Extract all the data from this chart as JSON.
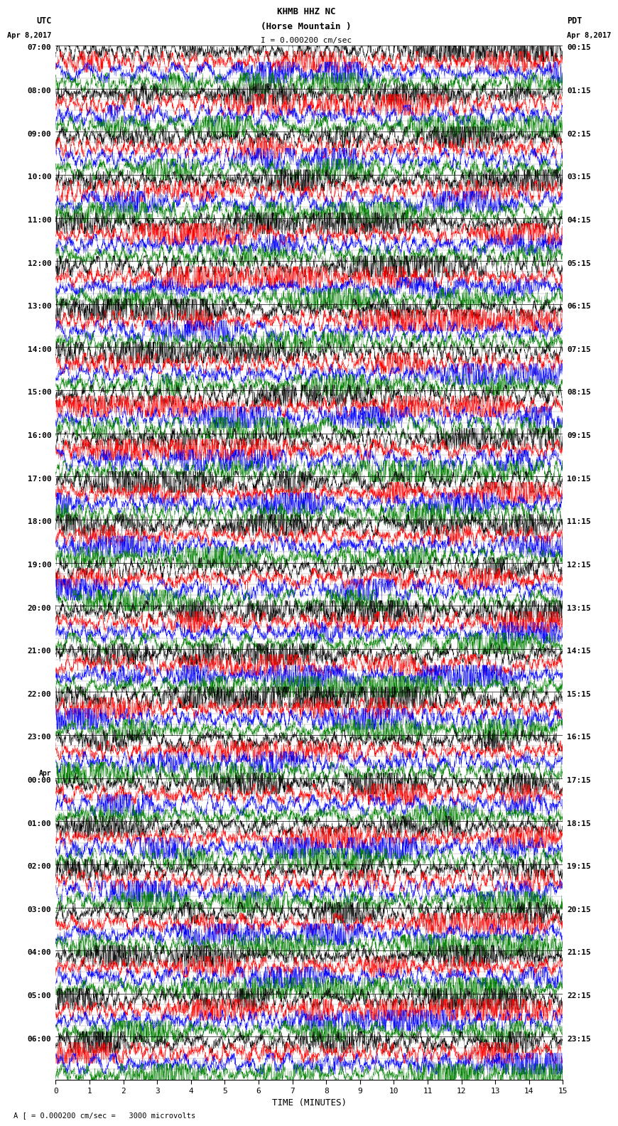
{
  "title_line1": "KHMB HHZ NC",
  "title_line2": "(Horse Mountain )",
  "scale_text": "I = 0.000200 cm/sec",
  "left_header": "UTC",
  "left_date": "Apr 8,2017",
  "right_header": "PDT",
  "right_date": "Apr 8,2017",
  "xlabel": "TIME (MINUTES)",
  "footer": "A [ = 0.000200 cm/sec =   3000 microvolts",
  "x_ticks": [
    0,
    1,
    2,
    3,
    4,
    5,
    6,
    7,
    8,
    9,
    10,
    11,
    12,
    13,
    14,
    15
  ],
  "left_times": [
    "07:00",
    "08:00",
    "09:00",
    "10:00",
    "11:00",
    "12:00",
    "13:00",
    "14:00",
    "15:00",
    "16:00",
    "17:00",
    "18:00",
    "19:00",
    "20:00",
    "21:00",
    "22:00",
    "23:00",
    "00:00",
    "01:00",
    "02:00",
    "03:00",
    "04:00",
    "05:00",
    "06:00"
  ],
  "left_times_has_apr": [
    0,
    0,
    0,
    0,
    0,
    0,
    0,
    0,
    0,
    0,
    0,
    0,
    0,
    0,
    0,
    0,
    0,
    1,
    0,
    0,
    0,
    0,
    0,
    0
  ],
  "right_times": [
    "00:15",
    "01:15",
    "02:15",
    "03:15",
    "04:15",
    "05:15",
    "06:15",
    "07:15",
    "08:15",
    "09:15",
    "10:15",
    "11:15",
    "12:15",
    "13:15",
    "14:15",
    "15:15",
    "16:15",
    "17:15",
    "18:15",
    "19:15",
    "20:15",
    "21:15",
    "22:15",
    "23:15"
  ],
  "num_rows": 24,
  "traces_per_row": 4,
  "colors": [
    "black",
    "red",
    "blue",
    "green"
  ],
  "bg_color": "white",
  "noise_seed": 42
}
